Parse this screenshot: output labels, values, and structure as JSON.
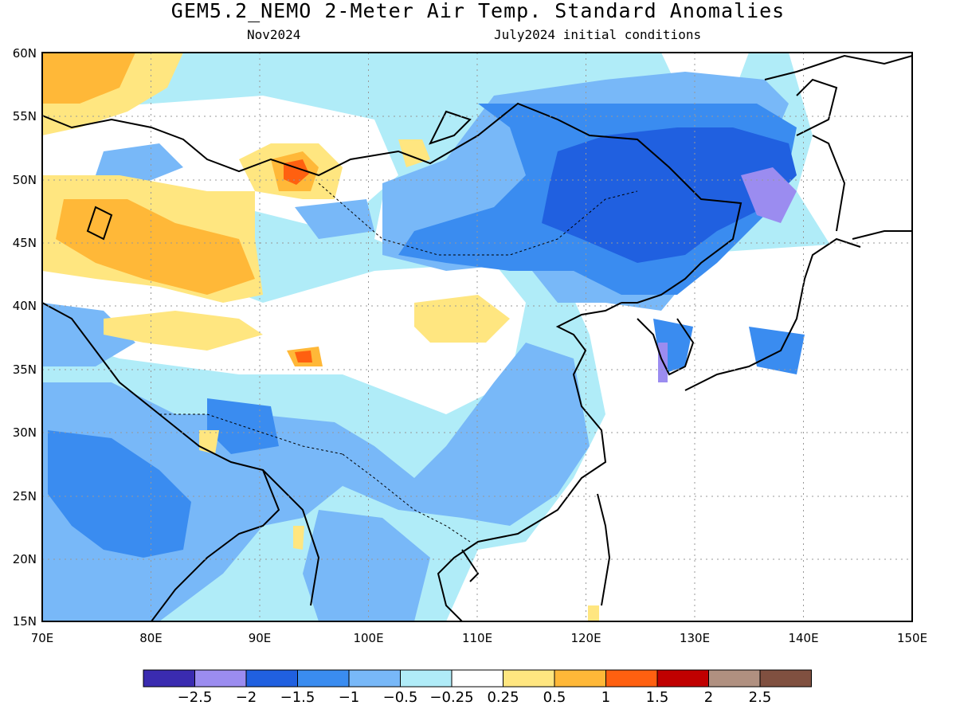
{
  "title": "GEM5.2_NEMO 2-Meter Air Temp. Standard Anomalies",
  "subtitle_left": "Nov2024",
  "subtitle_right": "July2024 initial conditions",
  "map": {
    "region": "East and South Asia",
    "lon_range": [
      70,
      150
    ],
    "lat_range": [
      15,
      60
    ],
    "x_ticks": [
      "70E",
      "80E",
      "90E",
      "100E",
      "110E",
      "120E",
      "130E",
      "140E",
      "150E"
    ],
    "y_ticks": [
      "15N",
      "20N",
      "25N",
      "30N",
      "35N",
      "40N",
      "45N",
      "50N",
      "55N",
      "60N"
    ],
    "grid": "dotted"
  },
  "colorbar": {
    "colors": [
      "#3a2bb0",
      "#9b8cf0",
      "#2060e0",
      "#3a8cf0",
      "#78b8f8",
      "#b0ecf8",
      "#ffffff",
      "#ffe680",
      "#ffb838",
      "#ff6010",
      "#c00000",
      "#b09080",
      "#805040"
    ],
    "labels": [
      "−2.5",
      "−2",
      "−1.5",
      "−1",
      "−0.5",
      "−0.25",
      "0.25",
      "0.5",
      "1",
      "1.5",
      "2",
      "2.5"
    ]
  }
}
